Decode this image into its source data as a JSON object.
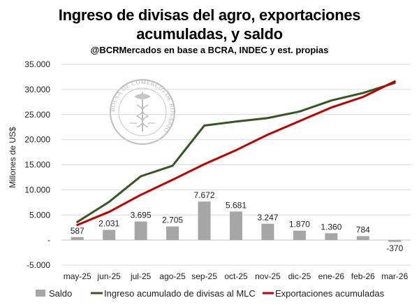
{
  "chart_data": {
    "type": "bar+line",
    "title_line1": "Ingreso de divisas del agro, exportaciones",
    "title_line2": "acumuladas, y saldo",
    "subtitle": "@BCRMercados  en base a BCRA,  INDEC y est. propias",
    "ylabel": "Millones de US$",
    "ylim": [
      -5000,
      35000
    ],
    "yticks": [
      -5000,
      0,
      5000,
      10000,
      15000,
      20000,
      25000,
      30000,
      35000
    ],
    "ytick_labels": [
      "-5.000",
      "-",
      "5.000",
      "10.000",
      "15.000",
      "20.000",
      "25.000",
      "30.000",
      "35.000"
    ],
    "categories": [
      "may-25",
      "jun-25",
      "jul-25",
      "ago-25",
      "sep-25",
      "oct-25",
      "nov-25",
      "dic-25",
      "ene-26",
      "feb-26",
      "mar-26"
    ],
    "series": [
      {
        "name": "Saldo",
        "kind": "bar",
        "color": "#a6a6a6",
        "values": [
          587,
          2031,
          3695,
          2705,
          7672,
          5681,
          3247,
          1870,
          1360,
          784,
          -370
        ],
        "labels": [
          "587",
          "2.031",
          "3.695",
          "2.705",
          "7.672",
          "5.681",
          "3.247",
          "1.870",
          "1.360",
          "784",
          "-370"
        ]
      },
      {
        "name": "Ingreso acumulado de divisas al MLC",
        "kind": "line",
        "color": "#375623",
        "values": [
          3600,
          7600,
          12700,
          14800,
          22800,
          23600,
          24300,
          25600,
          27800,
          29300,
          31300
        ]
      },
      {
        "name": "Exportaciones acumuladas",
        "kind": "line",
        "color": "#c00000",
        "values": [
          3000,
          5600,
          9000,
          12000,
          15100,
          17900,
          21000,
          23700,
          26400,
          28500,
          31600
        ]
      }
    ],
    "grid": true,
    "legend_position": "bottom",
    "watermark": "BOLSA DE COMERCIO DE ROSARIO"
  }
}
